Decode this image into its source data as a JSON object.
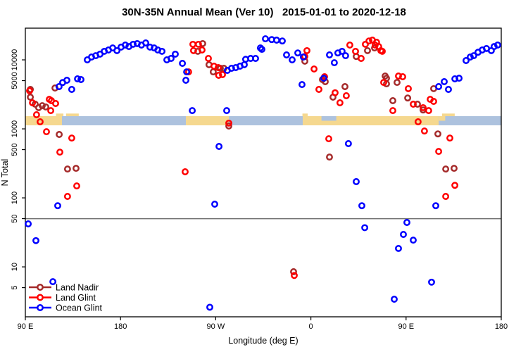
{
  "title": "30N-35N Annual Mean (Ver 10)   2015-01-01 to 2020-12-18",
  "chart_data": {
    "type": "scatter",
    "xlabel": "Longitude (deg E)",
    "ylabel": "N Total",
    "x_axis": {
      "lim": [
        90,
        540
      ],
      "ticks": [
        {
          "v": 90,
          "label": "90 E"
        },
        {
          "v": 180,
          "label": "180"
        },
        {
          "v": 270,
          "label": "90 W"
        },
        {
          "v": 360,
          "label": "0"
        },
        {
          "v": 450,
          "label": "90 E"
        },
        {
          "v": 540,
          "label": "180"
        }
      ]
    },
    "y_axis": {
      "scale": "log",
      "lim": [
        1.89,
        28800
      ],
      "ticks": [
        {
          "v": 10000,
          "label": "10000"
        },
        {
          "v": 5000,
          "label": "5000"
        },
        {
          "v": 1000,
          "label": "1000"
        },
        {
          "v": 500,
          "label": "500"
        },
        {
          "v": 100,
          "label": "100"
        },
        {
          "v": 50,
          "label": "50"
        },
        {
          "v": 10,
          "label": "10"
        },
        {
          "v": 5,
          "label": "5"
        }
      ]
    },
    "reference_line": {
      "y": 50,
      "color": "#6e6e6e"
    },
    "map_strip": {
      "ocean_color": "#adc2de",
      "land_color": "#f5d88f",
      "segments": [
        {
          "type": "land",
          "lon": [
            90,
            124.6
          ]
        },
        {
          "type": "ocean",
          "lon": [
            124.6,
            241.8
          ]
        },
        {
          "type": "land",
          "lon": [
            241.8,
            282.4
          ]
        },
        {
          "type": "ocean",
          "lon": [
            282.4,
            352.3
          ]
        },
        {
          "type": "land",
          "lon": [
            352.3,
            480.8
          ]
        },
        {
          "type": "ocean",
          "lon": [
            480.8,
            540
          ]
        }
      ],
      "details": [
        {
          "type": "land",
          "lon": [
            119,
            126
          ],
          "part": "above"
        },
        {
          "type": "land",
          "lon": [
            128.5,
            140.5
          ],
          "part": "above"
        },
        {
          "type": "land",
          "lon": [
            352,
            357
          ],
          "part": "above"
        },
        {
          "type": "ocean",
          "lon": [
            370,
            384
          ],
          "part": "top"
        },
        {
          "type": "land",
          "lon": [
            481,
            487
          ],
          "part": "top"
        },
        {
          "type": "land",
          "lon": [
            484,
            496
          ],
          "part": "above"
        }
      ]
    },
    "legend": {
      "items": [
        "Land Nadir",
        "Land Glint",
        "Ocean Glint"
      ]
    },
    "series": [
      {
        "name": "Land Nadir",
        "color": "#a52a2a",
        "points": [
          [
            94.7,
            3730
          ],
          [
            94.7,
            2880
          ],
          [
            99.3,
            2280
          ],
          [
            102.6,
            2030
          ],
          [
            106,
            2170
          ],
          [
            109.3,
            2080
          ],
          [
            118,
            3910
          ],
          [
            122,
            830
          ],
          [
            129.9,
            262
          ],
          [
            137.9,
            268
          ],
          [
            253.1,
            13300
          ],
          [
            257.7,
            17200
          ],
          [
            263.7,
            8500
          ],
          [
            267.7,
            6700
          ],
          [
            274.4,
            7550
          ],
          [
            277.7,
            7550
          ],
          [
            282.4,
            1100
          ],
          [
            343.6,
            8.5
          ],
          [
            354.3,
            9560
          ],
          [
            370.9,
            5180
          ],
          [
            373.6,
            4830
          ],
          [
            377.6,
            390
          ],
          [
            380.9,
            2880
          ],
          [
            392.2,
            4100
          ],
          [
            402.9,
            11200
          ],
          [
            413.5,
            13600
          ],
          [
            420.2,
            14900
          ],
          [
            430.2,
            5830
          ],
          [
            431.5,
            5420
          ],
          [
            431.5,
            4490
          ],
          [
            437.5,
            2560
          ],
          [
            441.5,
            4710
          ],
          [
            451.5,
            2800
          ],
          [
            460.8,
            2280
          ],
          [
            466.1,
            1880
          ],
          [
            476.1,
            3830
          ],
          [
            480.1,
            845
          ],
          [
            487.5,
            262
          ],
          [
            495.4,
            268
          ]
        ]
      },
      {
        "name": "Land Glint",
        "color": "#ff0000",
        "points": [
          [
            94,
            3560
          ],
          [
            96.7,
            2390
          ],
          [
            100.6,
            1600
          ],
          [
            104,
            1265
          ],
          [
            110,
            910
          ],
          [
            112.6,
            2680
          ],
          [
            114,
            1840
          ],
          [
            114.6,
            2560
          ],
          [
            118.6,
            2330
          ],
          [
            122.6,
            460
          ],
          [
            129.9,
            105
          ],
          [
            133.9,
            736
          ],
          [
            138.6,
            149
          ],
          [
            241.1,
            239
          ],
          [
            244.4,
            6700
          ],
          [
            248.4,
            16800
          ],
          [
            249,
            13600
          ],
          [
            253.7,
            16800
          ],
          [
            257.1,
            13900
          ],
          [
            263.1,
            10500
          ],
          [
            268.4,
            8100
          ],
          [
            272.4,
            7730
          ],
          [
            272.8,
            5970
          ],
          [
            276.4,
            6110
          ],
          [
            282.4,
            1210
          ],
          [
            344.3,
            7.5
          ],
          [
            354.3,
            11200
          ],
          [
            356.3,
            13600
          ],
          [
            363,
            7370
          ],
          [
            367.6,
            3730
          ],
          [
            372.9,
            5700
          ],
          [
            376.9,
            719
          ],
          [
            382.9,
            3330
          ],
          [
            387.5,
            2390
          ],
          [
            393.5,
            3020
          ],
          [
            396.8,
            16400
          ],
          [
            402.2,
            13300
          ],
          [
            407.5,
            10500
          ],
          [
            411.5,
            16800
          ],
          [
            414.9,
            18800
          ],
          [
            418.2,
            19300
          ],
          [
            420.8,
            16400
          ],
          [
            422.1,
            18000
          ],
          [
            424.1,
            15600
          ],
          [
            426.2,
            13600
          ],
          [
            427.5,
            13300
          ],
          [
            428.8,
            4710
          ],
          [
            437.5,
            1840
          ],
          [
            442.8,
            5830
          ],
          [
            446.8,
            5700
          ],
          [
            452.1,
            3830
          ],
          [
            456.8,
            2280
          ],
          [
            461.4,
            1265
          ],
          [
            466.1,
            2030
          ],
          [
            467.4,
            930
          ],
          [
            471.4,
            1840
          ],
          [
            472.8,
            2680
          ],
          [
            476.1,
            2500
          ],
          [
            480.8,
            471
          ],
          [
            487.5,
            105
          ],
          [
            491.4,
            736
          ],
          [
            496.1,
            152
          ]
        ]
      },
      {
        "name": "Ocean Glint",
        "color": "#0000ff",
        "points": [
          [
            92.7,
            42
          ],
          [
            100,
            24
          ],
          [
            116,
            6.1
          ],
          [
            120.6,
            77
          ],
          [
            121.9,
            4100
          ],
          [
            125.3,
            4700
          ],
          [
            129.3,
            5060
          ],
          [
            133.9,
            3730
          ],
          [
            139.3,
            5310
          ],
          [
            142.6,
            5180
          ],
          [
            148.6,
            10000
          ],
          [
            152.6,
            11000
          ],
          [
            156.6,
            11500
          ],
          [
            160.6,
            12100
          ],
          [
            164.6,
            13300
          ],
          [
            168.6,
            13900
          ],
          [
            172.6,
            14900
          ],
          [
            176.6,
            13600
          ],
          [
            180.5,
            15300
          ],
          [
            184.5,
            16400
          ],
          [
            187.9,
            15600
          ],
          [
            191.9,
            16800
          ],
          [
            195.8,
            17200
          ],
          [
            199.8,
            16400
          ],
          [
            203.8,
            17600
          ],
          [
            207.8,
            15300
          ],
          [
            211.8,
            14900
          ],
          [
            215.2,
            13900
          ],
          [
            219.2,
            13300
          ],
          [
            223.8,
            10000
          ],
          [
            227.8,
            10500
          ],
          [
            231.8,
            12100
          ],
          [
            238.5,
            8890
          ],
          [
            241.8,
            5060
          ],
          [
            242.5,
            6700
          ],
          [
            247.8,
            1840
          ],
          [
            264.4,
            2.6
          ],
          [
            269.1,
            81
          ],
          [
            273.1,
            556
          ],
          [
            280.4,
            1840
          ],
          [
            281,
            7030
          ],
          [
            285,
            7550
          ],
          [
            289,
            7730
          ],
          [
            293,
            8100
          ],
          [
            297,
            8500
          ],
          [
            298.3,
            10200
          ],
          [
            303,
            10500
          ],
          [
            307.7,
            10500
          ],
          [
            312.3,
            14900
          ],
          [
            313.7,
            14200
          ],
          [
            317,
            20200
          ],
          [
            323,
            19700
          ],
          [
            327.6,
            19300
          ],
          [
            333,
            18800
          ],
          [
            337,
            11800
          ],
          [
            342.3,
            10000
          ],
          [
            347.6,
            12600
          ],
          [
            351.6,
            4390
          ],
          [
            352.9,
            11000
          ],
          [
            372.2,
            5420
          ],
          [
            377.6,
            11800
          ],
          [
            382.2,
            9080
          ],
          [
            385.5,
            12600
          ],
          [
            389.5,
            13300
          ],
          [
            392.8,
            11500
          ],
          [
            395.5,
            611
          ],
          [
            402.9,
            172
          ],
          [
            408.2,
            77
          ],
          [
            410.9,
            37
          ],
          [
            438.8,
            3.4
          ],
          [
            442.8,
            18.5
          ],
          [
            447.5,
            29.5
          ],
          [
            450.8,
            44
          ],
          [
            456.8,
            24.4
          ],
          [
            474.1,
            6
          ],
          [
            478.1,
            77
          ],
          [
            480.8,
            4100
          ],
          [
            486.1,
            4830
          ],
          [
            490.1,
            3730
          ],
          [
            496.1,
            5310
          ],
          [
            500.1,
            5420
          ],
          [
            506.7,
            9770
          ],
          [
            510.7,
            11000
          ],
          [
            514,
            11500
          ],
          [
            518,
            12900
          ],
          [
            522,
            13900
          ],
          [
            526,
            14600
          ],
          [
            530.6,
            13600
          ],
          [
            533.3,
            15600
          ],
          [
            536.6,
            16400
          ]
        ]
      }
    ]
  }
}
